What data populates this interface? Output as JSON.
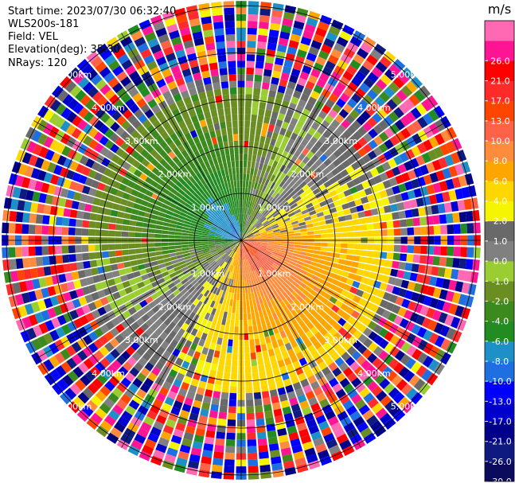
{
  "header": {
    "start_time": "Start time: 2023/07/30 06:32:40",
    "instrument": "WLS200s-181",
    "field": "Field: VEL",
    "elevation": "Elevation(deg): 35.30",
    "nrays": "NRays: 120"
  },
  "chart_data": {
    "type": "heatmap",
    "projection": "polar-ppi",
    "field": "VEL",
    "units": "m/s",
    "nrays": 120,
    "elevation_deg": 35.3,
    "range_rings_km": [
      1.0,
      2.0,
      3.0,
      4.0,
      5.0
    ],
    "ring_label_texts": [
      "1.00km",
      "2.00km",
      "3.00km",
      "4.00km",
      "5.00km"
    ],
    "max_range_km": 5.1,
    "colorbar": {
      "label": "m/s",
      "boundaries": [
        -30.0,
        -26.0,
        -21.0,
        -17.0,
        -13.0,
        -10.0,
        -8.0,
        -6.0,
        -4.0,
        -2.0,
        -1.0,
        0.0,
        1.0,
        2.0,
        4.0,
        6.0,
        8.0,
        10.0,
        13.0,
        17.0,
        21.0,
        26.0
      ],
      "tick_labels": [
        "-30.0",
        "-26.0",
        "-21.0",
        "-17.0",
        "-13.0",
        "-10.0",
        "-8.0",
        "-6.0",
        "-4.0",
        "-2.0",
        "-1.0",
        "0.0",
        "1.0",
        "2.0",
        "4.0",
        "6.0",
        "8.0",
        "10.0",
        "13.0",
        "17.0",
        "21.0",
        "26.0"
      ],
      "colors": [
        "#0b0b5e",
        "#0f1a80",
        "#00008b",
        "#0000cd",
        "#0000ff",
        "#1e6fe0",
        "#1e90c8",
        "#228b22",
        "#3c8a1e",
        "#6b8e23",
        "#9acd32",
        "#808080",
        "#696969",
        "#f5f500",
        "#ffd700",
        "#ffa500",
        "#ff8c3c",
        "#ff6347",
        "#ff4500",
        "#ff2a2a",
        "#ff0000",
        "#ff1493",
        "#ff69b4"
      ]
    },
    "features": {
      "negative_lobe_center_bearing_deg": 315,
      "positive_lobe_center_bearing_deg": 150,
      "clear_signal_max_km": 3.2,
      "noise_from_km": 3.6
    }
  }
}
